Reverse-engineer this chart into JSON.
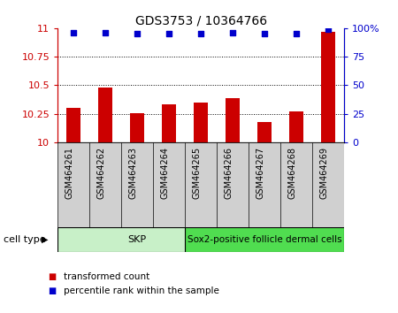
{
  "title": "GDS3753 / 10364766",
  "samples": [
    "GSM464261",
    "GSM464262",
    "GSM464263",
    "GSM464264",
    "GSM464265",
    "GSM464266",
    "GSM464267",
    "GSM464268",
    "GSM464269"
  ],
  "transformed_counts": [
    10.3,
    10.48,
    10.255,
    10.33,
    10.345,
    10.385,
    10.18,
    10.275,
    10.97
  ],
  "percentile_ranks": [
    96,
    96,
    95,
    95,
    95,
    96,
    95,
    95,
    99
  ],
  "ylim_left": [
    10,
    11
  ],
  "ylim_right": [
    0,
    100
  ],
  "yticks_left": [
    10,
    10.25,
    10.5,
    10.75,
    11
  ],
  "yticks_right": [
    0,
    25,
    50,
    75,
    100
  ],
  "bar_color": "#cc0000",
  "dot_color": "#0000cc",
  "grid_color": "#000000",
  "skp_color": "#c8f0c8",
  "sox2_color": "#50dd50",
  "sample_box_color": "#d0d0d0",
  "cell_type_groups": [
    {
      "label": "SKP",
      "indices": [
        0,
        1,
        2,
        3,
        4
      ]
    },
    {
      "label": "Sox2-positive follicle dermal cells",
      "indices": [
        4,
        5,
        6,
        7,
        8
      ]
    }
  ],
  "cell_type_label": "cell type",
  "legend_items": [
    {
      "label": "transformed count",
      "color": "#cc0000"
    },
    {
      "label": "percentile rank within the sample",
      "color": "#0000cc"
    }
  ],
  "background_color": "#ffffff",
  "title_fontsize": 10,
  "axis_fontsize": 8,
  "sample_fontsize": 7,
  "legend_fontsize": 8
}
